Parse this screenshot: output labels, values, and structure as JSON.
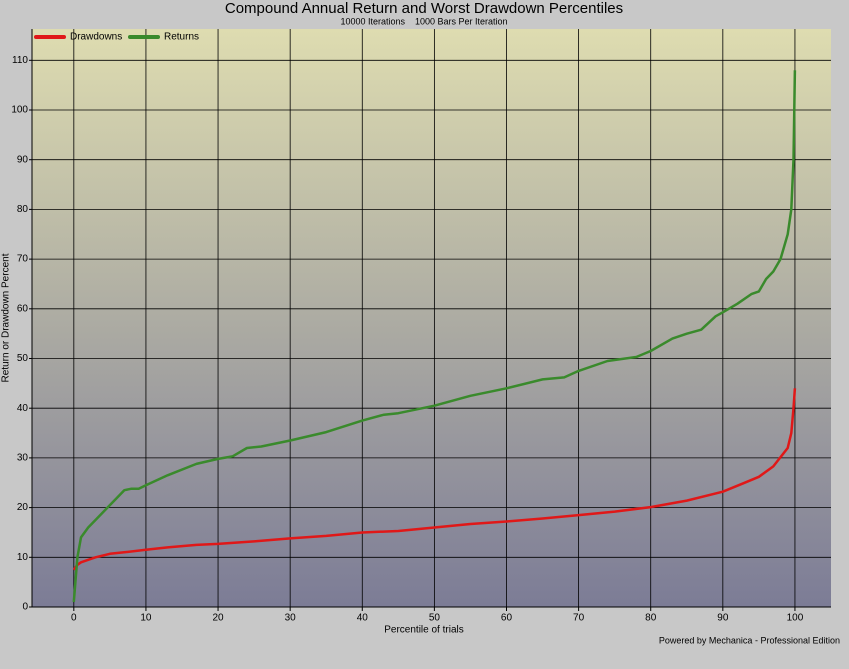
{
  "chart_data": {
    "type": "line",
    "title": "Compound Annual Return and Worst Drawdown Percentiles",
    "subtitle": "10000 Iterations    1000 Bars Per Iteration",
    "x_label": "Percentile of trials",
    "y_label": "Return or Drawdown Percent",
    "footer": "Powered by Mechanica - Professional Edition",
    "xlim": [
      -5.8,
      105
    ],
    "ylim": [
      0,
      116.3
    ],
    "xticks": [
      0,
      10,
      20,
      30,
      40,
      50,
      60,
      70,
      80,
      90,
      100
    ],
    "yticks": [
      0,
      10,
      20,
      30,
      40,
      50,
      60,
      70,
      80,
      90,
      100,
      110
    ],
    "grid": true,
    "legend": "top-left",
    "series": [
      {
        "name": "Drawdowns",
        "color": "#e01818",
        "x": [
          0,
          0.5,
          1,
          3,
          5,
          7,
          10,
          13,
          17,
          20,
          25,
          30,
          35,
          40,
          45,
          50,
          55,
          60,
          65,
          70,
          75,
          80,
          85,
          90,
          93,
          95,
          97,
          99,
          99.5,
          99.8,
          100
        ],
        "values": [
          7.5,
          8.5,
          9,
          10,
          10.7,
          11,
          11.5,
          12,
          12.5,
          12.7,
          13.2,
          13.8,
          14.3,
          15,
          15.3,
          16,
          16.7,
          17.2,
          17.8,
          18.5,
          19.2,
          20.1,
          21.4,
          23.2,
          25,
          26.2,
          28.3,
          32,
          35,
          40,
          44
        ]
      },
      {
        "name": "Returns",
        "color": "#3a8a2c",
        "x": [
          0,
          0.5,
          1,
          2,
          3,
          5,
          7,
          8,
          9,
          10,
          13,
          17,
          20,
          22,
          24,
          26,
          30,
          35,
          40,
          43,
          45,
          50,
          55,
          60,
          65,
          68,
          70,
          74,
          78,
          80,
          83,
          85,
          87,
          89,
          90,
          92,
          94,
          95,
          96,
          97,
          98,
          99,
          99.5,
          99.8,
          100
        ],
        "values": [
          1,
          10,
          14,
          16,
          17.5,
          20.5,
          23.5,
          23.8,
          23.8,
          24.5,
          26.5,
          28.8,
          29.8,
          30.3,
          32,
          32.3,
          33.5,
          35.2,
          37.5,
          38.7,
          39,
          40.5,
          42.5,
          44,
          45.8,
          46.2,
          47.5,
          49.5,
          50.3,
          51.5,
          54,
          55,
          55.8,
          58.5,
          59.3,
          61,
          63,
          63.5,
          66,
          67.5,
          70,
          75,
          80,
          90,
          108
        ]
      }
    ]
  }
}
